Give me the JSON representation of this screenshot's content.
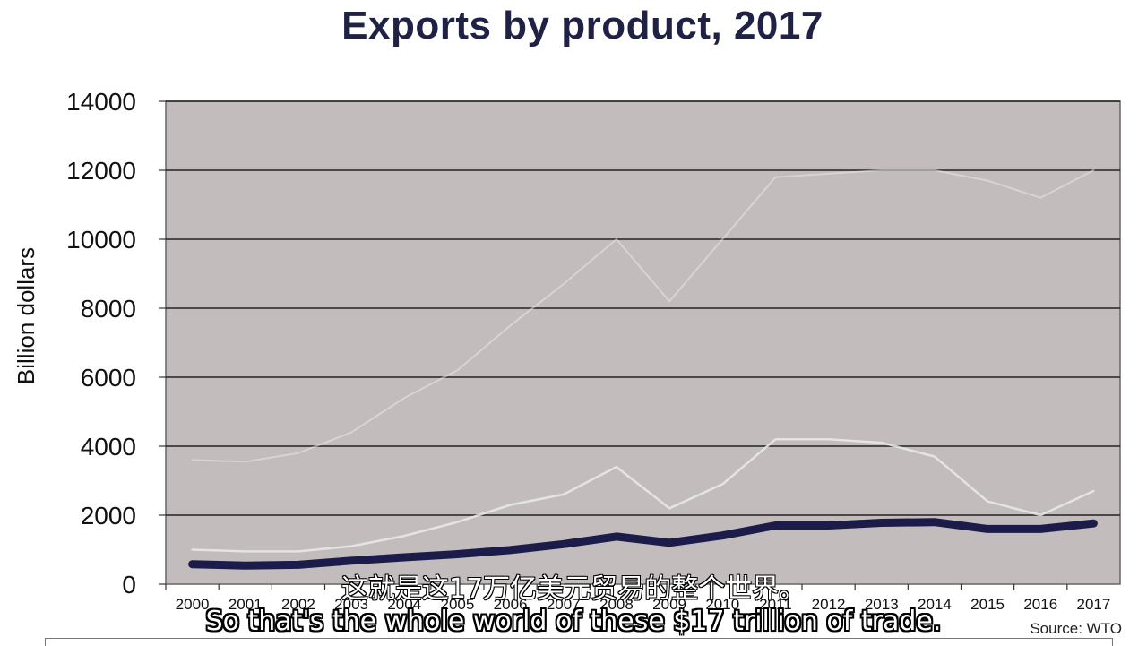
{
  "chart_data": {
    "type": "line",
    "title": "Exports by product, 2017",
    "ylabel": "Billion dollars",
    "xlabel": "",
    "categories": [
      "2000",
      "2001",
      "2002",
      "2003",
      "2004",
      "2005",
      "2006",
      "2007",
      "2008",
      "2009",
      "2010",
      "2011",
      "2012",
      "2013",
      "2014",
      "2015",
      "2016",
      "2017"
    ],
    "yticks": [
      0,
      2000,
      4000,
      6000,
      8000,
      10000,
      12000,
      14000
    ],
    "ylim": [
      0,
      14000
    ],
    "grid": true,
    "plot_background": "#c2bcbc",
    "series": [
      {
        "color": "#e8e8e8",
        "style": "faint",
        "values": [
          3600,
          3550,
          3800,
          4400,
          5400,
          6200,
          7500,
          8700,
          10000,
          8200,
          10000,
          11800,
          11900,
          12000,
          12000,
          11700,
          11200,
          12000
        ]
      },
      {
        "color": "#ebebeb",
        "style": "thin",
        "values": [
          1000,
          950,
          950,
          1100,
          1400,
          1800,
          2300,
          2600,
          3400,
          2200,
          2900,
          4200,
          4200,
          4100,
          3700,
          2400,
          2000,
          2700
        ]
      },
      {
        "color": "#1c1c4a",
        "style": "thick",
        "values": [
          580,
          540,
          560,
          680,
          780,
          870,
          990,
          1160,
          1380,
          1200,
          1410,
          1700,
          1700,
          1780,
          1800,
          1600,
          1600,
          1760
        ]
      }
    ]
  },
  "subtitles": {
    "chinese": "这就是这17万亿美元贸易的整个世界。",
    "english": "So that's the whole world of these $17 trillion of trade."
  },
  "source": "Source: WTO"
}
